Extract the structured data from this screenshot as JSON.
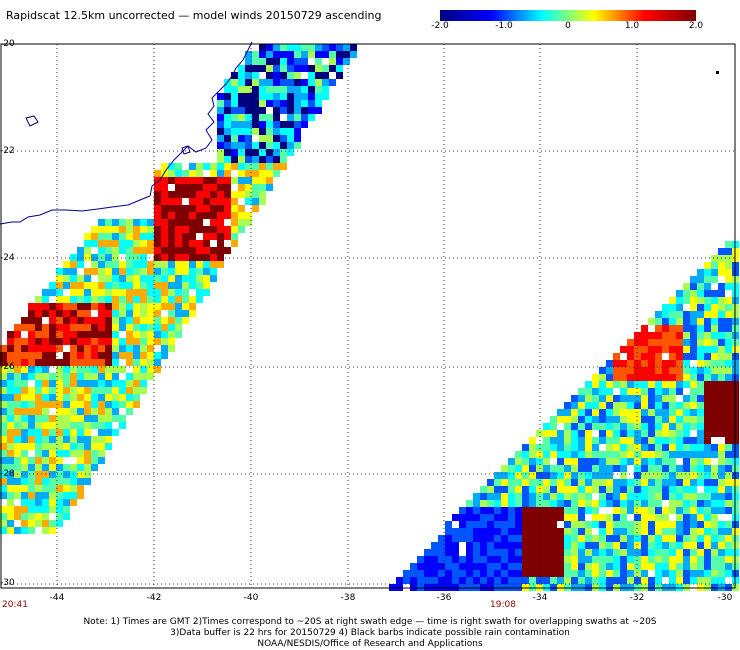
{
  "title": "Rapidscat 12.5km uncorrected — model winds 20150729 ascending",
  "colorbar": {
    "ticks": [
      "-2.0",
      "-1.0",
      "0",
      "1.0",
      "2.0"
    ]
  },
  "axes": {
    "lat_labels": [
      "-20",
      "-22",
      "-24",
      "-26",
      "-28",
      "-30"
    ],
    "lon_labels": [
      "-44",
      "-42",
      "-40",
      "-38",
      "-36",
      "-34",
      "-32",
      "-30"
    ]
  },
  "swath_times": {
    "left": "20:41",
    "right": "19:08"
  },
  "notes": {
    "line1": "Note: 1) Times are GMT 2)Times correspond to ~20S at right swath edge — time is right swath for overlapping swaths at ~20S",
    "line2": "3)Data buffer is 22 hrs for 20150729 4) Black barbs indicate possible rain contamination",
    "line3": "NOAA/NESDIS/Office of Research and Applications"
  },
  "colors": {
    "low": "#00007f",
    "mid": "#00ff80",
    "high": "#7f0000",
    "coast": "#00008b",
    "grid": "#000000"
  }
}
